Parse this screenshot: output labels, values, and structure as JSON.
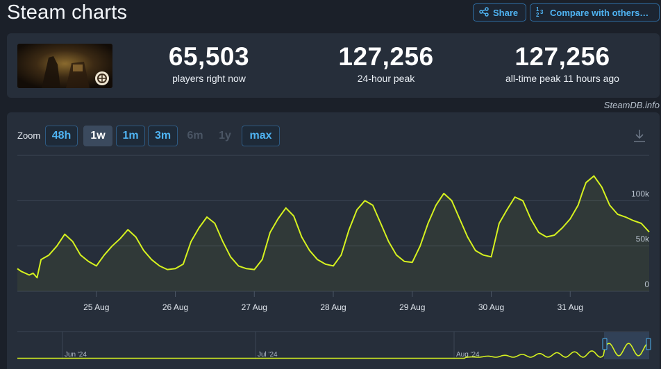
{
  "page": {
    "title": "Steam charts"
  },
  "toolbar": {
    "share_label": "Share",
    "compare_label": "Compare with others…",
    "share_icon": "share-icon",
    "compare_icon": "compare-icon"
  },
  "stats": [
    {
      "value": "65,503",
      "label": "players right now"
    },
    {
      "value": "127,256",
      "label": "24-hour peak"
    },
    {
      "value": "127,256",
      "label": "all-time peak 11 hours ago"
    }
  ],
  "credit": "SteamDB.info",
  "zoom": {
    "label": "Zoom",
    "options": [
      {
        "label": "48h",
        "state": "enabled"
      },
      {
        "label": "1w",
        "state": "active"
      },
      {
        "label": "1m",
        "state": "enabled"
      },
      {
        "label": "3m",
        "state": "enabled"
      },
      {
        "label": "6m",
        "state": "disabled"
      },
      {
        "label": "1y",
        "state": "disabled"
      },
      {
        "label": "max",
        "state": "enabled"
      }
    ]
  },
  "colors": {
    "line": "#d6f21f",
    "accent": "#4fb3f2",
    "card": "#262e3a",
    "background": "#1b2029"
  },
  "chart_data": {
    "type": "line",
    "yticks": [
      "0",
      "50k",
      "100k"
    ],
    "ylim": [
      0,
      150000
    ],
    "xticks": [
      "25 Aug",
      "26 Aug",
      "27 Aug",
      "28 Aug",
      "29 Aug",
      "30 Aug",
      "31 Aug"
    ],
    "grid": true,
    "series": [
      {
        "x": [
          24.0,
          24.05,
          24.1,
          24.15,
          24.2,
          24.25,
          24.3,
          24.4,
          24.5,
          24.6,
          24.7,
          24.8,
          24.9,
          25.0,
          25.1,
          25.2,
          25.3,
          25.4,
          25.5,
          25.6,
          25.7,
          25.8,
          25.9,
          26.0,
          26.1,
          26.2,
          26.3,
          26.4,
          26.5,
          26.6,
          26.7,
          26.8,
          26.9,
          27.0,
          27.1,
          27.2,
          27.3,
          27.4,
          27.5,
          27.6,
          27.7,
          27.8,
          27.9,
          28.0,
          28.1,
          28.2,
          28.3,
          28.4,
          28.5,
          28.6,
          28.7,
          28.8,
          28.9,
          29.0,
          29.1,
          29.2,
          29.3,
          29.4,
          29.5,
          29.6,
          29.7,
          29.8,
          29.9,
          30.0,
          30.1,
          30.2,
          30.3,
          30.4,
          30.5,
          30.6,
          30.7,
          30.8,
          30.9,
          31.0,
          31.1,
          31.15,
          31.2,
          31.3,
          31.4,
          31.5,
          31.6,
          31.7,
          31.8,
          31.9,
          32.0
        ],
        "y": [
          25000,
          22000,
          20000,
          18000,
          20000,
          15000,
          35000,
          40000,
          50000,
          63000,
          55000,
          40000,
          33000,
          28000,
          40000,
          50000,
          58000,
          68000,
          60000,
          45000,
          35000,
          28000,
          24000,
          25000,
          30000,
          55000,
          70000,
          82000,
          75000,
          55000,
          38000,
          28000,
          25000,
          24000,
          35000,
          65000,
          80000,
          92000,
          83000,
          60000,
          45000,
          35000,
          30000,
          28000,
          40000,
          68000,
          90000,
          100000,
          95000,
          75000,
          55000,
          40000,
          33000,
          32000,
          50000,
          75000,
          95000,
          108000,
          100000,
          80000,
          60000,
          45000,
          40000,
          38000,
          75000,
          90000,
          104000,
          100000,
          80000,
          65000,
          60000,
          62000,
          70000,
          80000,
          95000,
          108000,
          120000,
          127256,
          115000,
          95000,
          85000,
          82000,
          78000,
          75000,
          65503
        ]
      }
    ]
  },
  "navigator": {
    "labels": [
      "Jun '24",
      "Jul '24",
      "Aug '24"
    ]
  }
}
